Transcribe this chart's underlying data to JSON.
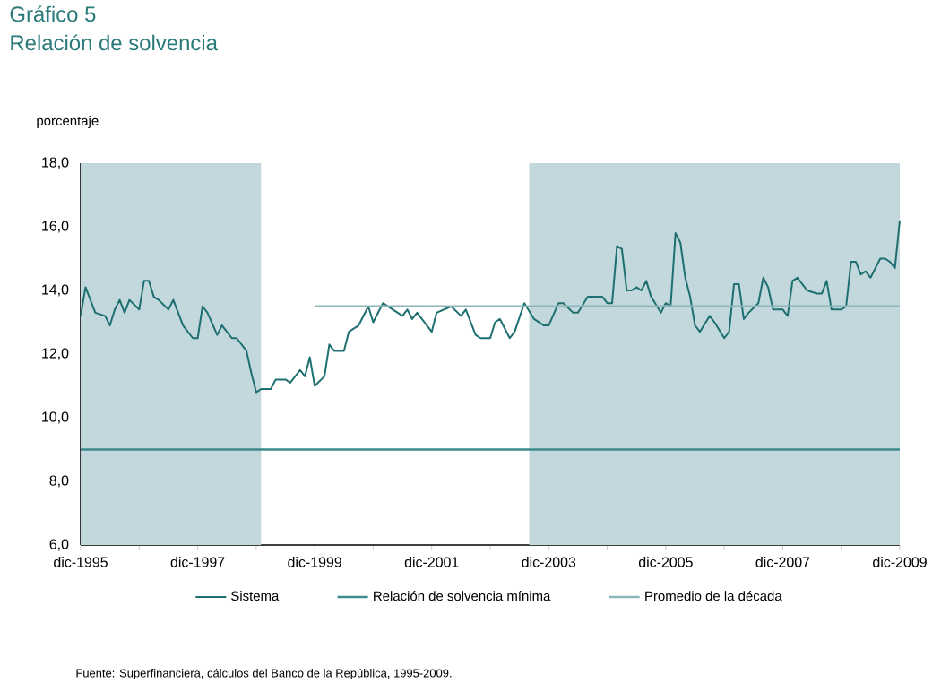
{
  "chart_data": {
    "type": "line",
    "title": "Gráfico 5",
    "subtitle": "Relación de solvencia",
    "ylabel": "porcentaje",
    "x": [
      "1995-12",
      "1996-01",
      "1996-03",
      "1996-05",
      "1996-06",
      "1996-07",
      "1996-08",
      "1996-09",
      "1996-10",
      "1996-12",
      "1997-01",
      "1997-02",
      "1997-03",
      "1997-04",
      "1997-06",
      "1997-07",
      "1997-09",
      "1997-11",
      "1997-12",
      "1998-01",
      "1998-02",
      "1998-04",
      "1998-05",
      "1998-07",
      "1998-08",
      "1998-10",
      "1998-11",
      "1998-12",
      "1999-01",
      "1999-03",
      "1999-04",
      "1999-06",
      "1999-07",
      "1999-09",
      "1999-10",
      "1999-11",
      "1999-12",
      "2000-02",
      "2000-03",
      "2000-04",
      "2000-06",
      "2000-07",
      "2000-09",
      "2000-11",
      "2000-12",
      "2001-02",
      "2001-04",
      "2001-06",
      "2001-07",
      "2001-08",
      "2001-09",
      "2001-12",
      "2002-01",
      "2002-04",
      "2002-06",
      "2002-07",
      "2002-09",
      "2002-10",
      "2002-12",
      "2003-01",
      "2003-02",
      "2003-04",
      "2003-05",
      "2003-07",
      "2003-09",
      "2003-11",
      "2003-12",
      "2004-02",
      "2004-03",
      "2004-05",
      "2004-06",
      "2004-08",
      "2004-10",
      "2004-11",
      "2004-12",
      "2005-01",
      "2005-02",
      "2005-03",
      "2005-04",
      "2005-05",
      "2005-06",
      "2005-07",
      "2005-08",
      "2005-09",
      "2005-11",
      "2005-12",
      "2006-01",
      "2006-02",
      "2006-03",
      "2006-04",
      "2006-05",
      "2006-06",
      "2006-07",
      "2006-09",
      "2006-10",
      "2006-12",
      "2007-01",
      "2007-02",
      "2007-03",
      "2007-04",
      "2007-05",
      "2007-07",
      "2007-08",
      "2007-09",
      "2007-10",
      "2007-12",
      "2008-01",
      "2008-02",
      "2008-03",
      "2008-05",
      "2008-07",
      "2008-08",
      "2008-09",
      "2008-10",
      "2008-12",
      "2009-01",
      "2009-02",
      "2009-03",
      "2009-04",
      "2009-05",
      "2009-06",
      "2009-08",
      "2009-09",
      "2009-10",
      "2009-11",
      "2009-12"
    ],
    "series": [
      {
        "name": "Sistema",
        "color": "#1d6f70",
        "values": [
          13.2,
          14.1,
          13.3,
          13.2,
          12.9,
          13.4,
          13.7,
          13.3,
          13.7,
          13.4,
          14.3,
          14.3,
          13.8,
          13.7,
          13.4,
          13.7,
          12.9,
          12.5,
          12.5,
          13.5,
          13.3,
          12.6,
          12.9,
          12.5,
          12.5,
          12.1,
          11.4,
          10.8,
          10.9,
          10.9,
          11.2,
          11.2,
          11.1,
          11.5,
          11.3,
          11.9,
          11.0,
          11.3,
          12.3,
          12.1,
          12.1,
          12.7,
          12.9,
          13.5,
          13.0,
          13.6,
          13.4,
          13.2,
          13.4,
          13.1,
          13.3,
          12.7,
          13.3,
          13.5,
          13.2,
          13.4,
          12.6,
          12.5,
          12.5,
          13.0,
          13.1,
          12.5,
          12.7,
          13.6,
          13.1,
          12.9,
          12.9,
          13.6,
          13.6,
          13.3,
          13.3,
          13.8,
          13.8,
          13.8,
          13.6,
          13.6,
          15.4,
          15.3,
          14.0,
          14.0,
          14.1,
          14.0,
          14.3,
          13.8,
          13.3,
          13.6,
          13.5,
          15.8,
          15.5,
          14.4,
          13.8,
          12.9,
          12.7,
          13.2,
          13.0,
          12.5,
          12.7,
          14.2,
          14.2,
          13.1,
          13.3,
          13.6,
          14.4,
          14.1,
          13.4,
          13.4,
          13.2,
          14.3,
          14.4,
          14.0,
          13.9,
          13.9,
          14.3,
          13.4,
          13.4,
          13.5,
          14.9,
          14.9,
          14.5,
          14.6,
          14.4,
          15.0,
          15.0,
          14.9,
          14.7,
          16.2
        ]
      },
      {
        "name": "Relación de solvencia mínima",
        "color": "#3d8a8d",
        "x": [
          "1995-12",
          "2009-12"
        ],
        "values": [
          9.0,
          9.0
        ]
      },
      {
        "name": "Promedio de la década",
        "color": "#8db6b8",
        "x": [
          "1999-12",
          "2009-12"
        ],
        "values": [
          13.5,
          13.5
        ]
      }
    ],
    "xlim": [
      "1995-12",
      "2009-12"
    ],
    "xticks": [
      {
        "value": "1995-12",
        "label": "dic-1995"
      },
      {
        "value": "1996-12",
        "label": null
      },
      {
        "value": "1997-12",
        "label": "dic-1997"
      },
      {
        "value": "1998-12",
        "label": null
      },
      {
        "value": "1999-12",
        "label": "dic-1999"
      },
      {
        "value": "2000-12",
        "label": null
      },
      {
        "value": "2001-12",
        "label": "dic-2001"
      },
      {
        "value": "2002-12",
        "label": null
      },
      {
        "value": "2003-12",
        "label": "dic-2003"
      },
      {
        "value": "2004-12",
        "label": null
      },
      {
        "value": "2005-12",
        "label": "dic-2005"
      },
      {
        "value": "2006-12",
        "label": null
      },
      {
        "value": "2007-12",
        "label": "dic-2007"
      },
      {
        "value": "2008-12",
        "label": null
      },
      {
        "value": "2009-12",
        "label": "dic-2009"
      }
    ],
    "ylim": [
      6,
      18
    ],
    "yticks": [
      {
        "value": 6,
        "label": "6,0"
      },
      {
        "value": 8,
        "label": "8,0"
      },
      {
        "value": 10,
        "label": "10,0"
      },
      {
        "value": 12,
        "label": "12,0"
      },
      {
        "value": 14,
        "label": "14,0"
      },
      {
        "value": 16,
        "label": "16,0"
      },
      {
        "value": 18,
        "label": "18,0"
      }
    ],
    "bands": [
      {
        "axis": "x",
        "from": "1995-12",
        "to": "1999-01",
        "color": "#c3d8dc"
      },
      {
        "axis": "x",
        "from": "2003-08",
        "to": "2009-12",
        "color": "#c3d8dc"
      }
    ],
    "legend": "bottom",
    "annotations": [
      "Fuente: Superfinanciera, cálculos del Banco de la República, 1995-2009."
    ]
  }
}
